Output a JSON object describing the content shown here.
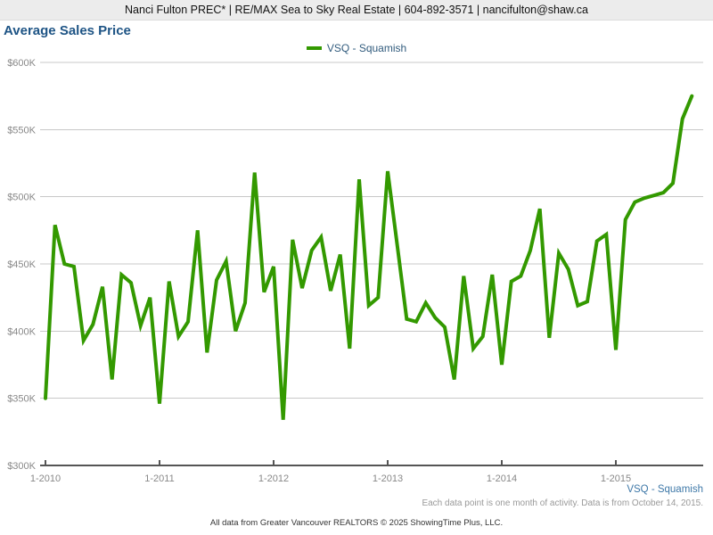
{
  "header": {
    "contact_line": "Nanci Fulton PREC* | RE/MAX Sea to Sky Real Estate | 604-892-3571 | nancifulton@shaw.ca"
  },
  "title": "Average Sales Price",
  "legend": {
    "label": "VSQ - Squamish"
  },
  "caption": {
    "series_label": "VSQ - Squamish",
    "note": "Each data point is one month of activity. Data is from October 14, 2015."
  },
  "footer": {
    "attribution": "All data from Greater Vancouver REALTORS © 2025 ShowingTime Plus, LLC."
  },
  "colors": {
    "line": "#339900",
    "title_text": "#1e5485",
    "legend_text": "#315b7d",
    "caption_link": "#3e78a8",
    "axis_labels": "#888888",
    "gridline": "#c8c8c8",
    "axis_line": "#555555",
    "header_bg": "#ececec"
  },
  "chart_data": {
    "type": "line",
    "title": "Average Sales Price",
    "series_name": "VSQ - Squamish",
    "x_start": "2010-01",
    "x_end": "2015-09",
    "cadence": "monthly",
    "grid": "horizontal",
    "legend_position": "top-center",
    "ylim_k": [
      300,
      600
    ],
    "y_ticks_k": [
      300,
      350,
      400,
      450,
      500,
      550,
      600
    ],
    "y_tick_labels": [
      "$300K",
      "$350K",
      "$400K",
      "$450K",
      "$500K",
      "$550K",
      "$600K"
    ],
    "x_tick_labels": [
      "1-2010",
      "1-2011",
      "1-2012",
      "1-2013",
      "1-2014",
      "1-2015"
    ],
    "x_tick_month_indices": [
      0,
      12,
      24,
      36,
      48,
      60
    ],
    "months": [
      "Jan 2010",
      "Feb 2010",
      "Mar 2010",
      "Apr 2010",
      "May 2010",
      "Jun 2010",
      "Jul 2010",
      "Aug 2010",
      "Sep 2010",
      "Oct 2010",
      "Nov 2010",
      "Dec 2010",
      "Jan 2011",
      "Feb 2011",
      "Mar 2011",
      "Apr 2011",
      "May 2011",
      "Jun 2011",
      "Jul 2011",
      "Aug 2011",
      "Sep 2011",
      "Oct 2011",
      "Nov 2011",
      "Dec 2011",
      "Jan 2012",
      "Feb 2012",
      "Mar 2012",
      "Apr 2012",
      "May 2012",
      "Jun 2012",
      "Jul 2012",
      "Aug 2012",
      "Sep 2012",
      "Oct 2012",
      "Nov 2012",
      "Dec 2012",
      "Jan 2013",
      "Feb 2013",
      "Mar 2013",
      "Apr 2013",
      "May 2013",
      "Jun 2013",
      "Jul 2013",
      "Aug 2013",
      "Sep 2013",
      "Oct 2013",
      "Nov 2013",
      "Dec 2013",
      "Jan 2014",
      "Feb 2014",
      "Mar 2014",
      "Apr 2014",
      "May 2014",
      "Jun 2014",
      "Jul 2014",
      "Aug 2014",
      "Sep 2014",
      "Oct 2014",
      "Nov 2014",
      "Dec 2014",
      "Jan 2015",
      "Feb 2015",
      "Mar 2015",
      "Apr 2015",
      "May 2015",
      "Jun 2015",
      "Jul 2015",
      "Aug 2015",
      "Sep 2015"
    ],
    "values_k": [
      350,
      479,
      450,
      448,
      393,
      405,
      433,
      364,
      442,
      436,
      404,
      425,
      346,
      437,
      396,
      407,
      475,
      384,
      438,
      452,
      400,
      421,
      518,
      429,
      448,
      334,
      468,
      432,
      460,
      470,
      430,
      457,
      387,
      513,
      419,
      425,
      519,
      464,
      409,
      407,
      421,
      410,
      403,
      364,
      441,
      387,
      396,
      442,
      375,
      437,
      441,
      460,
      491,
      395,
      458,
      446,
      419,
      422,
      467,
      472,
      386,
      483,
      496,
      499,
      501,
      503,
      510,
      558,
      575
    ]
  }
}
